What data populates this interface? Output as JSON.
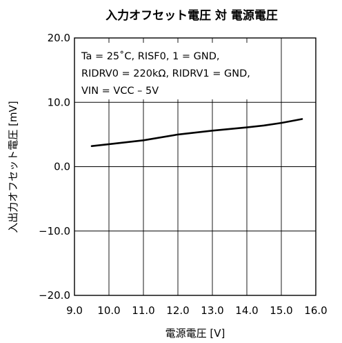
{
  "chart_data": {
    "type": "line",
    "title": "入力オフセット電圧 対 電源電圧",
    "xlabel": "電源電圧 [V]",
    "ylabel": "入出力オフセット電圧 [mV]",
    "xlim": [
      9.0,
      16.0
    ],
    "ylim": [
      -20.0,
      20.0
    ],
    "x_ticks": [
      "9.0",
      "10.0",
      "11.0",
      "12.0",
      "13.0",
      "14.0",
      "15.0",
      "16.0"
    ],
    "y_ticks": [
      "-20.0",
      "-10.0",
      "0.0",
      "10.0",
      "20.0"
    ],
    "grid": true,
    "conditions": [
      "Ta = 25˚C,  RISF0, 1 = GND,",
      "RIDRV0 = 220kΩ,  RIDRV1 = GND,",
      "VIN = VCC – 5V"
    ],
    "series": [
      {
        "x": [
          9.5,
          10.0,
          11.0,
          12.0,
          13.0,
          14.0,
          14.5,
          15.0,
          15.6
        ],
        "y": [
          3.2,
          3.5,
          4.1,
          5.0,
          5.6,
          6.1,
          6.4,
          6.8,
          7.4
        ]
      }
    ],
    "line_color": "#000000"
  }
}
